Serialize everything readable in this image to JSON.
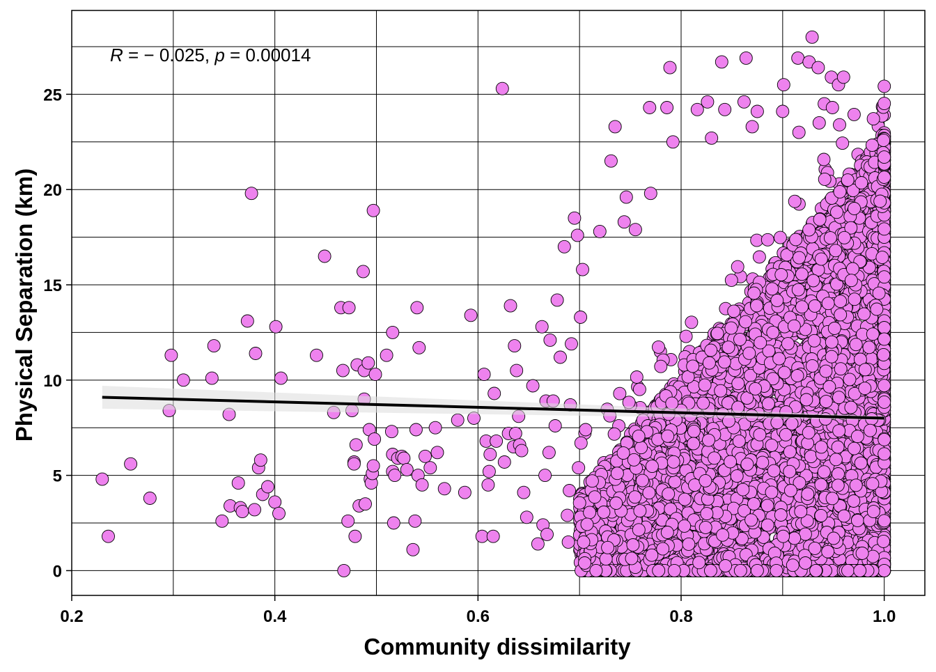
{
  "chart_data": {
    "type": "scatter",
    "title": "",
    "xlabel": "Community dissimilarity",
    "ylabel": "Physical Separation (km)",
    "xlim": [
      0.2,
      1.04
    ],
    "ylim": [
      -1.3,
      29.4
    ],
    "x_ticks": [
      0.2,
      0.4,
      0.6,
      0.8,
      1.0
    ],
    "x_tick_labels": [
      "0.2",
      "0.4",
      "0.6",
      "0.8",
      "1.0"
    ],
    "y_ticks": [
      0,
      5,
      10,
      15,
      20,
      25
    ],
    "y_tick_labels": [
      "0",
      "5",
      "10",
      "15",
      "20",
      "25"
    ],
    "x_minor_gridlines": [
      0.3,
      0.5,
      0.7,
      0.9
    ],
    "y_minor_gridlines": [
      2.5,
      7.5,
      12.5,
      17.5,
      22.5,
      27.5
    ],
    "grid": true,
    "annotation": {
      "r_symbol": "R",
      "r_value": " = − 0.025, ",
      "p_symbol": "p",
      "p_value": " = 0.00014"
    },
    "point_color": "#ee82ee",
    "point_edge_color": "#000000",
    "line_color": "#000000",
    "band_color": "#dcdcdc",
    "regression": {
      "x": [
        0.23,
        1.0
      ],
      "y": [
        9.1,
        8.0
      ],
      "ci_lower": [
        8.5,
        7.9
      ],
      "ci_upper": [
        9.7,
        8.1
      ]
    },
    "dense_cloud": {
      "x_range": [
        0.7,
        1.0
      ],
      "y_range": [
        0,
        28
      ],
      "point_count": 6000
    },
    "series": [
      {
        "points": [
          [
            0.23,
            4.8
          ],
          [
            0.236,
            1.8
          ],
          [
            0.258,
            5.6
          ],
          [
            0.277,
            3.8
          ],
          [
            0.296,
            8.4
          ],
          [
            0.298,
            11.3
          ],
          [
            0.31,
            10.0
          ],
          [
            0.338,
            10.1
          ],
          [
            0.34,
            11.8
          ],
          [
            0.348,
            2.6
          ],
          [
            0.355,
            8.2
          ],
          [
            0.356,
            3.4
          ],
          [
            0.364,
            4.6
          ],
          [
            0.366,
            3.3
          ],
          [
            0.368,
            3.1
          ],
          [
            0.373,
            13.1
          ],
          [
            0.377,
            19.8
          ],
          [
            0.38,
            3.2
          ],
          [
            0.381,
            11.4
          ],
          [
            0.384,
            5.4
          ],
          [
            0.386,
            5.8
          ],
          [
            0.388,
            4.0
          ],
          [
            0.393,
            4.4
          ],
          [
            0.4,
            3.6
          ],
          [
            0.401,
            12.8
          ],
          [
            0.404,
            3.0
          ],
          [
            0.406,
            10.1
          ],
          [
            0.441,
            11.3
          ],
          [
            0.449,
            16.5
          ],
          [
            0.458,
            8.3
          ],
          [
            0.465,
            13.8
          ],
          [
            0.467,
            10.5
          ],
          [
            0.468,
            0.0
          ],
          [
            0.472,
            2.6
          ],
          [
            0.473,
            13.8
          ],
          [
            0.476,
            8.4
          ],
          [
            0.478,
            5.7
          ],
          [
            0.478,
            5.6
          ],
          [
            0.479,
            1.8
          ],
          [
            0.48,
            6.6
          ],
          [
            0.481,
            10.8
          ],
          [
            0.483,
            3.4
          ],
          [
            0.487,
            15.7
          ],
          [
            0.488,
            10.5
          ],
          [
            0.488,
            9.0
          ],
          [
            0.489,
            3.5
          ],
          [
            0.492,
            10.9
          ],
          [
            0.493,
            7.4
          ],
          [
            0.494,
            4.8
          ],
          [
            0.495,
            4.6
          ],
          [
            0.496,
            5.1
          ],
          [
            0.497,
            18.9
          ],
          [
            0.497,
            5.5
          ],
          [
            0.498,
            6.9
          ],
          [
            0.499,
            10.3
          ],
          [
            0.51,
            11.3
          ],
          [
            0.515,
            7.3
          ],
          [
            0.516,
            12.5
          ],
          [
            0.516,
            6.1
          ],
          [
            0.516,
            5.2
          ],
          [
            0.517,
            2.5
          ],
          [
            0.518,
            5.0
          ],
          [
            0.521,
            5.9
          ],
          [
            0.525,
            6.0
          ],
          [
            0.527,
            5.9
          ],
          [
            0.53,
            5.3
          ],
          [
            0.536,
            1.1
          ],
          [
            0.538,
            2.6
          ],
          [
            0.539,
            7.4
          ],
          [
            0.54,
            13.8
          ],
          [
            0.541,
            5.0
          ],
          [
            0.542,
            11.7
          ],
          [
            0.545,
            4.5
          ],
          [
            0.548,
            6.0
          ],
          [
            0.553,
            5.4
          ],
          [
            0.558,
            7.5
          ],
          [
            0.56,
            6.2
          ],
          [
            0.567,
            4.3
          ],
          [
            0.58,
            7.9
          ],
          [
            0.587,
            4.1
          ],
          [
            0.593,
            13.4
          ],
          [
            0.596,
            8.0
          ],
          [
            0.604,
            1.8
          ],
          [
            0.606,
            10.3
          ],
          [
            0.608,
            6.8
          ],
          [
            0.61,
            4.5
          ],
          [
            0.611,
            5.2
          ],
          [
            0.612,
            6.1
          ],
          [
            0.615,
            1.8
          ],
          [
            0.616,
            9.3
          ],
          [
            0.618,
            6.8
          ],
          [
            0.624,
            25.3
          ],
          [
            0.626,
            5.7
          ],
          [
            0.63,
            7.2
          ],
          [
            0.632,
            13.9
          ],
          [
            0.635,
            6.5
          ],
          [
            0.636,
            11.8
          ],
          [
            0.637,
            7.2
          ],
          [
            0.638,
            10.5
          ],
          [
            0.64,
            8.1
          ],
          [
            0.641,
            6.6
          ],
          [
            0.643,
            6.3
          ],
          [
            0.645,
            4.1
          ],
          [
            0.648,
            2.8
          ],
          [
            0.654,
            9.7
          ],
          [
            0.659,
            1.4
          ],
          [
            0.663,
            12.8
          ],
          [
            0.664,
            2.4
          ],
          [
            0.666,
            5.0
          ],
          [
            0.667,
            8.9
          ],
          [
            0.668,
            1.9
          ],
          [
            0.67,
            6.2
          ],
          [
            0.671,
            12.1
          ],
          [
            0.674,
            8.9
          ],
          [
            0.676,
            7.6
          ],
          [
            0.678,
            14.2
          ],
          [
            0.681,
            11.2
          ],
          [
            0.685,
            17.0
          ],
          [
            0.688,
            2.9
          ],
          [
            0.689,
            1.5
          ],
          [
            0.69,
            4.2
          ],
          [
            0.691,
            8.7
          ],
          [
            0.692,
            11.9
          ],
          [
            0.695,
            18.5
          ],
          [
            0.698,
            17.6
          ],
          [
            0.699,
            5.4
          ],
          [
            0.701,
            13.3
          ],
          [
            0.703,
            15.8
          ],
          [
            0.704,
            1.5
          ],
          [
            0.705,
            0.4
          ],
          [
            0.706,
            7.4
          ],
          [
            0.72,
            17.8
          ],
          [
            0.731,
            21.5
          ],
          [
            0.735,
            23.3
          ],
          [
            0.744,
            18.3
          ],
          [
            0.746,
            19.6
          ],
          [
            0.755,
            17.9
          ],
          [
            0.769,
            24.3
          ],
          [
            0.77,
            19.8
          ],
          [
            0.786,
            24.3
          ],
          [
            0.789,
            26.4
          ],
          [
            0.792,
            22.5
          ],
          [
            0.816,
            24.2
          ],
          [
            0.826,
            24.6
          ],
          [
            0.83,
            22.7
          ],
          [
            0.84,
            26.7
          ],
          [
            0.843,
            24.2
          ],
          [
            0.862,
            24.6
          ],
          [
            0.864,
            26.9
          ],
          [
            0.87,
            23.3
          ],
          [
            0.875,
            24.1
          ],
          [
            0.9,
            24.1
          ],
          [
            0.901,
            25.5
          ],
          [
            0.915,
            26.9
          ],
          [
            0.926,
            26.7
          ],
          [
            0.929,
            28.0
          ],
          [
            0.935,
            26.4
          ],
          [
            0.948,
            25.9
          ],
          [
            0.955,
            25.5
          ],
          [
            0.96,
            25.9
          ],
          [
            0.941,
            24.5
          ],
          [
            0.949,
            24.3
          ],
          [
            0.956,
            23.4
          ],
          [
            0.936,
            23.5
          ],
          [
            0.916,
            23.0
          ]
        ]
      }
    ]
  }
}
